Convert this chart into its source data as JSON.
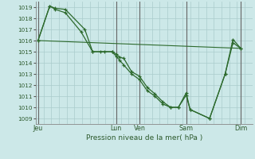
{
  "xlabel": "Pression niveau de la mer( hPa )",
  "background_color": "#cce8e8",
  "grid_color": "#aacccc",
  "line_color": "#2d6a2d",
  "yticks": [
    1009,
    1010,
    1011,
    1012,
    1013,
    1014,
    1015,
    1016,
    1017,
    1018,
    1019
  ],
  "ylim": [
    1008.5,
    1019.5
  ],
  "day_labels": [
    "Jeu",
    "Lun",
    "Ven",
    "Sam",
    "Dim"
  ],
  "day_x": [
    0,
    10,
    13,
    19,
    26
  ],
  "xlim": [
    -0.3,
    27.5
  ],
  "series1_x": [
    0,
    1.5,
    2.2,
    3.5,
    6,
    7,
    8,
    9.5,
    10,
    10.5,
    11,
    12,
    13,
    14,
    15,
    16,
    17,
    18,
    19,
    19.5,
    22,
    24,
    25,
    26
  ],
  "series1_y": [
    1016.0,
    1019.1,
    1018.9,
    1018.8,
    1017.0,
    1015.0,
    1015.0,
    1015.0,
    1014.8,
    1014.5,
    1014.4,
    1013.2,
    1012.8,
    1011.8,
    1011.2,
    1010.5,
    1010.0,
    1010.0,
    1011.1,
    1009.8,
    1009.0,
    1013.0,
    1015.8,
    1015.3
  ],
  "series2_x": [
    0,
    1.5,
    2.2,
    3.5,
    5.5,
    7,
    8.5,
    9.5,
    10,
    10.5,
    11,
    12,
    13,
    14,
    15,
    16,
    17,
    18,
    19,
    19.5,
    22,
    24,
    25,
    26
  ],
  "series2_y": [
    1016.0,
    1019.1,
    1018.8,
    1018.5,
    1016.8,
    1015.0,
    1015.0,
    1015.0,
    1014.6,
    1014.2,
    1013.8,
    1013.0,
    1012.5,
    1011.5,
    1011.0,
    1010.3,
    1010.0,
    1010.0,
    1011.3,
    1009.8,
    1009.0,
    1013.0,
    1016.1,
    1015.3
  ],
  "series3_x": [
    0,
    26
  ],
  "series3_y": [
    1016.0,
    1015.3
  ]
}
